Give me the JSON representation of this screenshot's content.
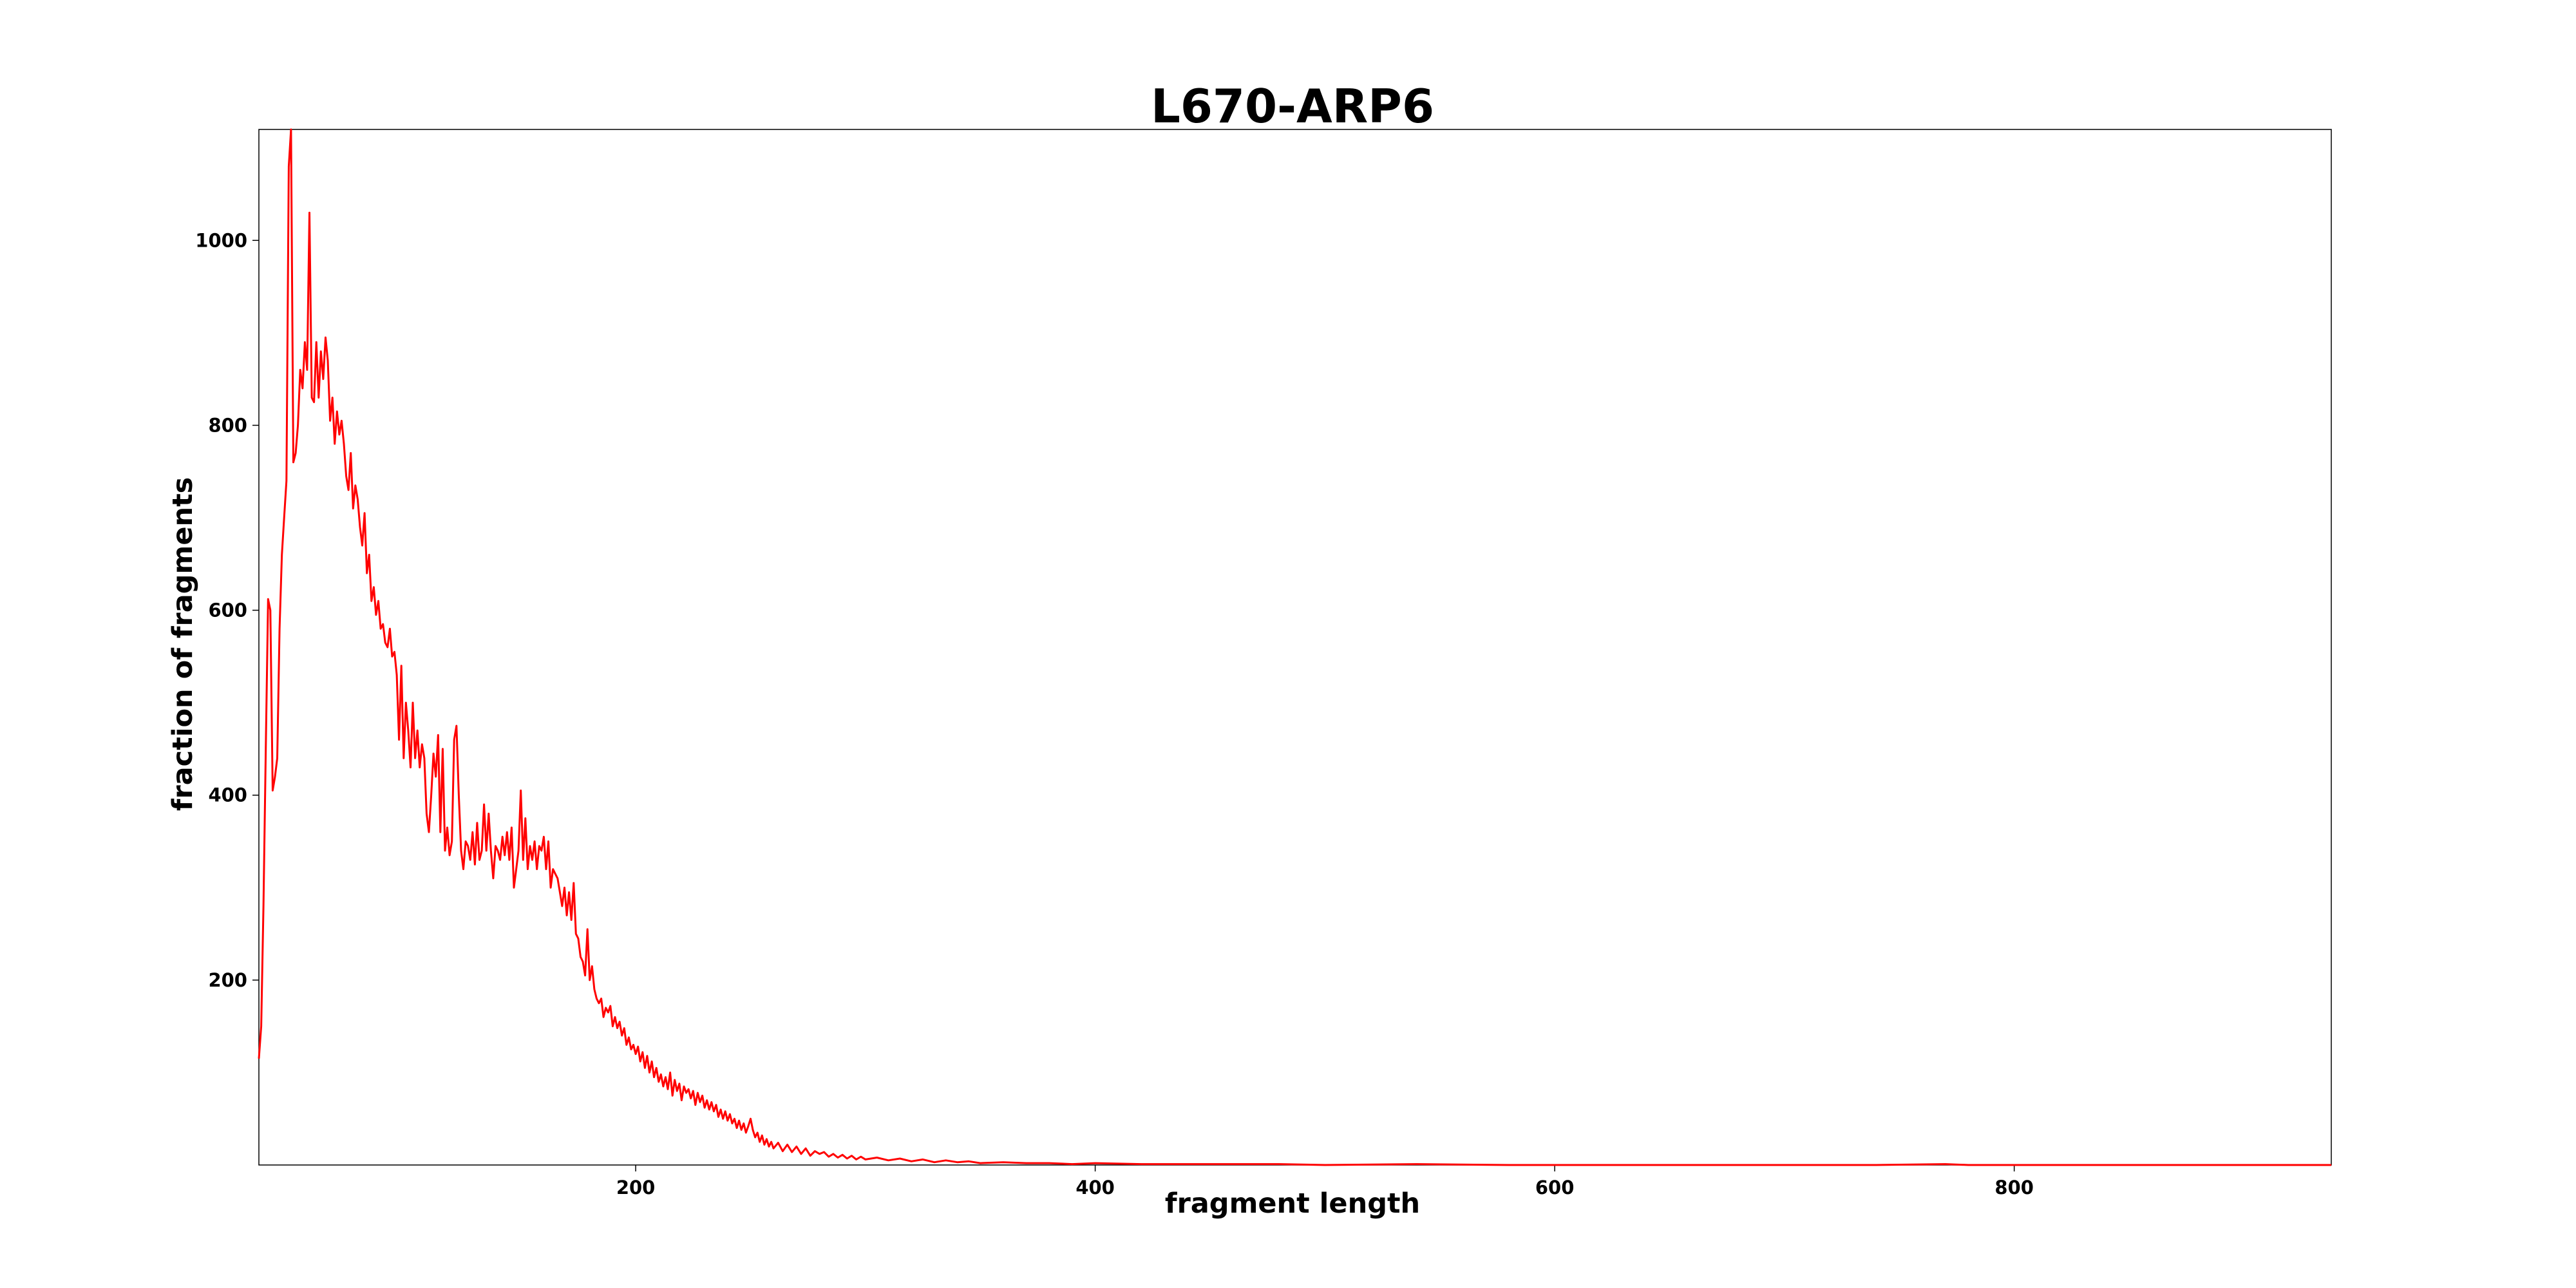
{
  "chart_data": {
    "type": "line",
    "title": "L670-ARP6",
    "xlabel": "fragment length",
    "ylabel": "fraction of fragments",
    "xlim": [
      36,
      938
    ],
    "ylim": [
      0,
      1120
    ],
    "xticks": [
      200,
      400,
      600,
      800
    ],
    "xtick_labels": [
      "200",
      "400",
      "600",
      "800"
    ],
    "yticks": [
      200,
      400,
      600,
      800,
      1000
    ],
    "ytick_labels": [
      "200",
      "400",
      "600",
      "800",
      "1000"
    ],
    "grid": false,
    "legend": "none",
    "series": [
      {
        "color": "#ff0000",
        "points": [
          [
            36,
            115
          ],
          [
            37,
            150
          ],
          [
            38,
            280
          ],
          [
            39,
            450
          ],
          [
            40,
            612
          ],
          [
            41,
            600
          ],
          [
            42,
            405
          ],
          [
            43,
            420
          ],
          [
            44,
            440
          ],
          [
            45,
            580
          ],
          [
            46,
            660
          ],
          [
            47,
            700
          ],
          [
            48,
            740
          ],
          [
            49,
            1080
          ],
          [
            50,
            1120
          ],
          [
            51,
            760
          ],
          [
            52,
            770
          ],
          [
            53,
            800
          ],
          [
            54,
            860
          ],
          [
            55,
            840
          ],
          [
            56,
            890
          ],
          [
            57,
            860
          ],
          [
            58,
            1030
          ],
          [
            59,
            830
          ],
          [
            60,
            825
          ],
          [
            61,
            890
          ],
          [
            62,
            830
          ],
          [
            63,
            880
          ],
          [
            64,
            850
          ],
          [
            65,
            895
          ],
          [
            66,
            870
          ],
          [
            67,
            805
          ],
          [
            68,
            830
          ],
          [
            69,
            780
          ],
          [
            70,
            815
          ],
          [
            71,
            790
          ],
          [
            72,
            805
          ],
          [
            73,
            780
          ],
          [
            74,
            745
          ],
          [
            75,
            730
          ],
          [
            76,
            770
          ],
          [
            77,
            710
          ],
          [
            78,
            735
          ],
          [
            79,
            720
          ],
          [
            80,
            690
          ],
          [
            81,
            670
          ],
          [
            82,
            705
          ],
          [
            83,
            640
          ],
          [
            84,
            660
          ],
          [
            85,
            610
          ],
          [
            86,
            625
          ],
          [
            87,
            595
          ],
          [
            88,
            610
          ],
          [
            89,
            580
          ],
          [
            90,
            585
          ],
          [
            91,
            565
          ],
          [
            92,
            560
          ],
          [
            93,
            580
          ],
          [
            94,
            550
          ],
          [
            95,
            555
          ],
          [
            96,
            530
          ],
          [
            97,
            460
          ],
          [
            98,
            540
          ],
          [
            99,
            440
          ],
          [
            100,
            500
          ],
          [
            101,
            470
          ],
          [
            102,
            430
          ],
          [
            103,
            500
          ],
          [
            104,
            440
          ],
          [
            105,
            470
          ],
          [
            106,
            430
          ],
          [
            107,
            455
          ],
          [
            108,
            440
          ],
          [
            109,
            380
          ],
          [
            110,
            360
          ],
          [
            111,
            400
          ],
          [
            112,
            445
          ],
          [
            113,
            420
          ],
          [
            114,
            465
          ],
          [
            115,
            360
          ],
          [
            116,
            450
          ],
          [
            117,
            340
          ],
          [
            118,
            365
          ],
          [
            119,
            335
          ],
          [
            120,
            350
          ],
          [
            121,
            460
          ],
          [
            122,
            475
          ],
          [
            123,
            400
          ],
          [
            124,
            340
          ],
          [
            125,
            320
          ],
          [
            126,
            350
          ],
          [
            127,
            345
          ],
          [
            128,
            330
          ],
          [
            129,
            360
          ],
          [
            130,
            325
          ],
          [
            131,
            370
          ],
          [
            132,
            330
          ],
          [
            133,
            340
          ],
          [
            134,
            390
          ],
          [
            135,
            340
          ],
          [
            136,
            380
          ],
          [
            137,
            340
          ],
          [
            138,
            310
          ],
          [
            139,
            345
          ],
          [
            140,
            340
          ],
          [
            141,
            330
          ],
          [
            142,
            355
          ],
          [
            143,
            335
          ],
          [
            144,
            360
          ],
          [
            145,
            330
          ],
          [
            146,
            365
          ],
          [
            147,
            300
          ],
          [
            148,
            320
          ],
          [
            149,
            340
          ],
          [
            150,
            405
          ],
          [
            151,
            330
          ],
          [
            152,
            375
          ],
          [
            153,
            320
          ],
          [
            154,
            345
          ],
          [
            155,
            330
          ],
          [
            156,
            350
          ],
          [
            157,
            320
          ],
          [
            158,
            345
          ],
          [
            159,
            340
          ],
          [
            160,
            355
          ],
          [
            161,
            320
          ],
          [
            162,
            350
          ],
          [
            163,
            300
          ],
          [
            164,
            320
          ],
          [
            165,
            315
          ],
          [
            166,
            310
          ],
          [
            167,
            295
          ],
          [
            168,
            280
          ],
          [
            169,
            300
          ],
          [
            170,
            270
          ],
          [
            171,
            295
          ],
          [
            172,
            265
          ],
          [
            173,
            305
          ],
          [
            174,
            250
          ],
          [
            175,
            245
          ],
          [
            176,
            225
          ],
          [
            177,
            220
          ],
          [
            178,
            205
          ],
          [
            179,
            255
          ],
          [
            180,
            200
          ],
          [
            181,
            215
          ],
          [
            182,
            190
          ],
          [
            183,
            180
          ],
          [
            184,
            175
          ],
          [
            185,
            180
          ],
          [
            186,
            160
          ],
          [
            187,
            170
          ],
          [
            188,
            165
          ],
          [
            189,
            172
          ],
          [
            190,
            150
          ],
          [
            191,
            160
          ],
          [
            192,
            148
          ],
          [
            193,
            155
          ],
          [
            194,
            140
          ],
          [
            195,
            148
          ],
          [
            196,
            130
          ],
          [
            197,
            138
          ],
          [
            198,
            125
          ],
          [
            199,
            130
          ],
          [
            200,
            120
          ],
          [
            201,
            128
          ],
          [
            202,
            112
          ],
          [
            203,
            122
          ],
          [
            204,
            105
          ],
          [
            205,
            118
          ],
          [
            206,
            100
          ],
          [
            207,
            112
          ],
          [
            208,
            95
          ],
          [
            209,
            105
          ],
          [
            210,
            90
          ],
          [
            211,
            98
          ],
          [
            212,
            85
          ],
          [
            213,
            95
          ],
          [
            214,
            82
          ],
          [
            215,
            100
          ],
          [
            216,
            75
          ],
          [
            217,
            92
          ],
          [
            218,
            80
          ],
          [
            219,
            88
          ],
          [
            220,
            70
          ],
          [
            221,
            85
          ],
          [
            222,
            78
          ],
          [
            223,
            82
          ],
          [
            224,
            72
          ],
          [
            225,
            80
          ],
          [
            226,
            65
          ],
          [
            227,
            78
          ],
          [
            228,
            68
          ],
          [
            229,
            75
          ],
          [
            230,
            62
          ],
          [
            231,
            70
          ],
          [
            232,
            60
          ],
          [
            233,
            68
          ],
          [
            234,
            58
          ],
          [
            235,
            65
          ],
          [
            236,
            52
          ],
          [
            237,
            60
          ],
          [
            238,
            50
          ],
          [
            239,
            58
          ],
          [
            240,
            48
          ],
          [
            241,
            55
          ],
          [
            242,
            45
          ],
          [
            243,
            50
          ],
          [
            244,
            40
          ],
          [
            245,
            48
          ],
          [
            246,
            38
          ],
          [
            247,
            45
          ],
          [
            248,
            35
          ],
          [
            249,
            42
          ],
          [
            250,
            50
          ],
          [
            251,
            38
          ],
          [
            252,
            30
          ],
          [
            253,
            35
          ],
          [
            254,
            25
          ],
          [
            255,
            32
          ],
          [
            256,
            22
          ],
          [
            257,
            28
          ],
          [
            258,
            20
          ],
          [
            259,
            25
          ],
          [
            260,
            18
          ],
          [
            262,
            24
          ],
          [
            264,
            15
          ],
          [
            266,
            22
          ],
          [
            268,
            14
          ],
          [
            270,
            20
          ],
          [
            272,
            12
          ],
          [
            274,
            18
          ],
          [
            276,
            10
          ],
          [
            278,
            15
          ],
          [
            280,
            12
          ],
          [
            282,
            14
          ],
          [
            284,
            9
          ],
          [
            286,
            12
          ],
          [
            288,
            8
          ],
          [
            290,
            11
          ],
          [
            292,
            7
          ],
          [
            294,
            10
          ],
          [
            296,
            6
          ],
          [
            298,
            9
          ],
          [
            300,
            6
          ],
          [
            305,
            8
          ],
          [
            310,
            5
          ],
          [
            315,
            7
          ],
          [
            320,
            4
          ],
          [
            325,
            6
          ],
          [
            330,
            3
          ],
          [
            335,
            5
          ],
          [
            340,
            3
          ],
          [
            345,
            4
          ],
          [
            350,
            2
          ],
          [
            360,
            3
          ],
          [
            370,
            2
          ],
          [
            380,
            2
          ],
          [
            390,
            1
          ],
          [
            400,
            2
          ],
          [
            420,
            1
          ],
          [
            440,
            1
          ],
          [
            460,
            1
          ],
          [
            480,
            1
          ],
          [
            500,
            0
          ],
          [
            540,
            1
          ],
          [
            580,
            0
          ],
          [
            620,
            0
          ],
          [
            660,
            0
          ],
          [
            700,
            0
          ],
          [
            740,
            0
          ],
          [
            770,
            1
          ],
          [
            780,
            0
          ],
          [
            820,
            0
          ],
          [
            860,
            0
          ],
          [
            900,
            0
          ],
          [
            938,
            0
          ]
        ]
      }
    ]
  }
}
